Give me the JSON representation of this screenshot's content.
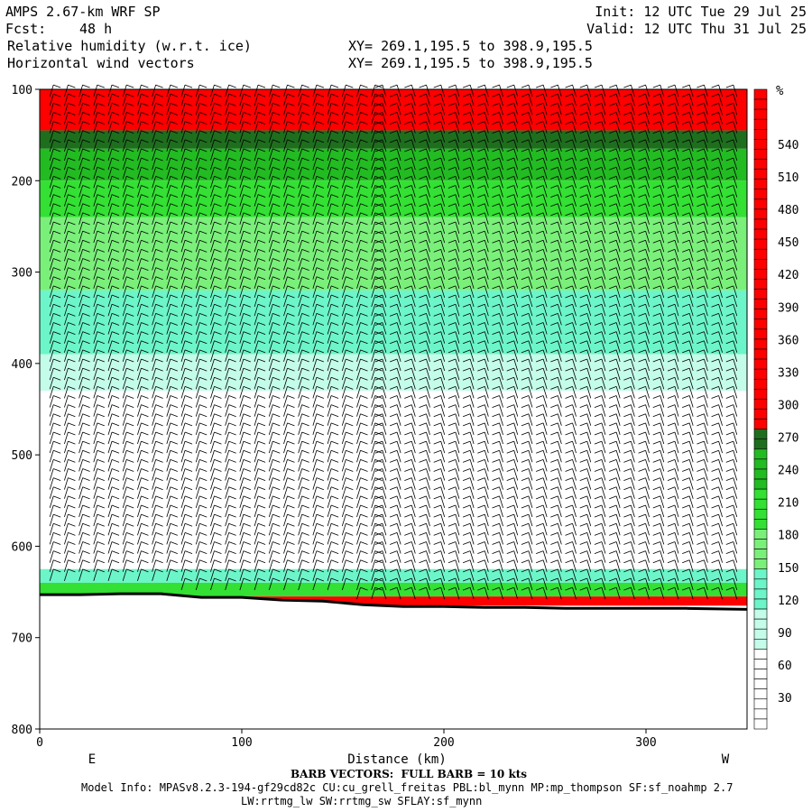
{
  "header": {
    "model": "AMPS 2.67-km WRF SP",
    "fcst_label": "Fcst:",
    "fcst_value": "48 h",
    "field1": "Relative humidity (w.r.t. ice)",
    "field2": "Horizontal wind vectors",
    "init": "Init: 12 UTC Tue 29 Jul 25",
    "valid": "Valid: 12 UTC Thu 31 Jul 25",
    "xy1": "XY= 269.1,195.5 to 398.9,195.5",
    "xy2": "XY= 269.1,195.5 to 398.9,195.5"
  },
  "footer": {
    "dir_left": "E",
    "dir_right": "W",
    "barb_note": "BARB VECTORS:  FULL BARB = 10 kts",
    "model_info": "Model Info: MPASv8.2.3-194-gf29cd82c CU:cu_grell_freitas PBL:bl_mynn MP:mp_thompson SF:sf_noahmp 2.7",
    "model_info2": "LW:rrtmg_lw SW:rrtmg_sw SFLAY:sf_mynn"
  },
  "colors": {
    "red": "#ff0000",
    "dark_green": "#1e6e1e",
    "green": "#22bb22",
    "bright_green": "#33e033",
    "light_green": "#7af07a",
    "pale_green": "#a8f8a8",
    "aqua": "#6cf5c8",
    "pale_aqua": "#c4fcea",
    "white": "#ffffff",
    "terrain_line": "#000000"
  },
  "chart_data": {
    "type": "heatmap",
    "title": "Relative humidity (w.r.t. ice)",
    "xlabel": "Distance (km)",
    "ylabel": "",
    "xlim": [
      0,
      350
    ],
    "ylim": [
      800,
      100
    ],
    "x_ticks": [
      0,
      100,
      200,
      300
    ],
    "y_ticks": [
      100,
      200,
      300,
      400,
      500,
      600,
      700,
      800
    ],
    "colorbar": {
      "unit": "%",
      "ticks": [
        30,
        60,
        90,
        120,
        150,
        180,
        210,
        240,
        270,
        300,
        330,
        360,
        390,
        420,
        450,
        480,
        510,
        540
      ]
    },
    "layers": [
      {
        "name": "red",
        "top": 100,
        "bottom": 145
      },
      {
        "name": "dark_green",
        "top": 145,
        "bottom": 165
      },
      {
        "name": "green",
        "top": 165,
        "bottom": 200
      },
      {
        "name": "bright_green",
        "top": 200,
        "bottom": 240
      },
      {
        "name": "light_green",
        "top": 240,
        "bottom": 320
      },
      {
        "name": "aqua",
        "top": 320,
        "bottom": 390
      },
      {
        "name": "pale_aqua",
        "top": 390,
        "bottom": 430
      },
      {
        "name": "white",
        "top": 430,
        "bottom": 625
      },
      {
        "name": "aqua",
        "top": 625,
        "bottom": 640
      },
      {
        "name": "bright_green",
        "top": 640,
        "bottom": 655
      },
      {
        "name": "red",
        "top": 655,
        "bottom": 665
      }
    ],
    "terrain": {
      "x": [
        0,
        20,
        40,
        60,
        80,
        100,
        120,
        140,
        160,
        180,
        200,
        220,
        240,
        260,
        280,
        300,
        320,
        350
      ],
      "surface_pressure": [
        653,
        653,
        652,
        652,
        656,
        656,
        659,
        660,
        664,
        666,
        666,
        667,
        667,
        668,
        668,
        668,
        668,
        669
      ]
    }
  }
}
